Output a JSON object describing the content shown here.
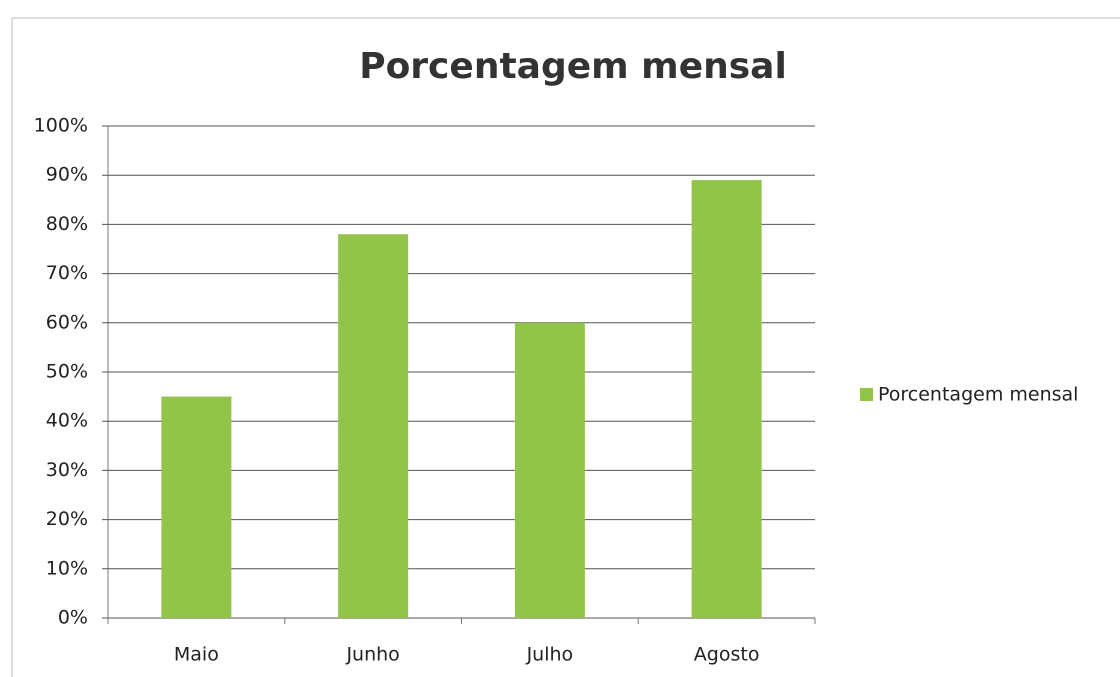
{
  "chart_data": {
    "type": "bar",
    "title": "Porcentagem mensal",
    "categories": [
      "Maio",
      "Junho",
      "Julho",
      "Agosto"
    ],
    "series": [
      {
        "name": "Porcentagem mensal",
        "color": "#92c44a",
        "values": [
          45,
          78,
          60,
          89
        ]
      }
    ],
    "ylim": [
      0,
      100
    ],
    "yticks": [
      {
        "value": 0,
        "label": "0%"
      },
      {
        "value": 10,
        "label": "10%"
      },
      {
        "value": 20,
        "label": "20%"
      },
      {
        "value": 30,
        "label": "30%"
      },
      {
        "value": 40,
        "label": "40%"
      },
      {
        "value": 50,
        "label": "50%"
      },
      {
        "value": 60,
        "label": "60%"
      },
      {
        "value": 70,
        "label": "70%"
      },
      {
        "value": 80,
        "label": "80%"
      },
      {
        "value": 90,
        "label": "90%"
      },
      {
        "value": 100,
        "label": "100%"
      }
    ],
    "grid": true,
    "legend": "right"
  }
}
